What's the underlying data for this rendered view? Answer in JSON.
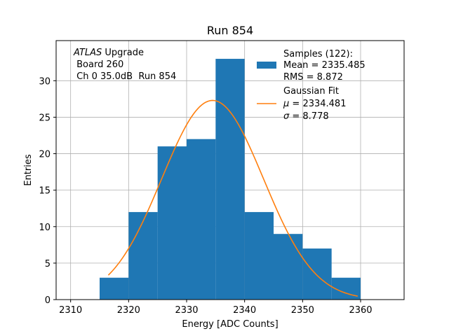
{
  "chart_data": {
    "type": "bar",
    "title": "Run 854",
    "xlabel": "Energy [ADC Counts]",
    "ylabel": "Entries",
    "xlim": [
      2307.5,
      2367.5
    ],
    "ylim": [
      0,
      35.5
    ],
    "xticks": [
      2310,
      2320,
      2330,
      2340,
      2350,
      2360
    ],
    "yticks": [
      0,
      5,
      10,
      15,
      20,
      25,
      30
    ],
    "grid": true,
    "bins": [
      {
        "low": 2315,
        "high": 2320,
        "count": 3
      },
      {
        "low": 2320,
        "high": 2325,
        "count": 12
      },
      {
        "low": 2325,
        "high": 2330,
        "count": 21
      },
      {
        "low": 2330,
        "high": 2335,
        "count": 22
      },
      {
        "low": 2335,
        "high": 2340,
        "count": 33
      },
      {
        "low": 2340,
        "high": 2345,
        "count": 12
      },
      {
        "low": 2345,
        "high": 2350,
        "count": 9
      },
      {
        "low": 2350,
        "high": 2355,
        "count": 7
      },
      {
        "low": 2355,
        "high": 2360,
        "count": 3
      }
    ],
    "fit": {
      "type": "gaussian",
      "amplitude": 27.3,
      "mu": 2334.481,
      "sigma": 8.778,
      "x_range": [
        2316.5,
        2359.5
      ]
    },
    "colors": {
      "bars": "#1f77b4",
      "fit": "#ff7f0e"
    },
    "annotation": {
      "italic": "ATLAS",
      "line1_rest": " Upgrade",
      "line2": " Board 260",
      "line3": " Ch 0 35.0dB  Run 854"
    },
    "legend": {
      "location": "top-right",
      "samples_title": "Samples (122):",
      "samples_mean": "Mean = 2335.485",
      "samples_rms": "RMS = 8.872",
      "fit_title": "Gaussian Fit",
      "fit_mu_sym": "μ",
      "fit_mu_val": " = 2334.481",
      "fit_sigma_sym": "σ",
      "fit_sigma_val": " = 8.778"
    }
  }
}
